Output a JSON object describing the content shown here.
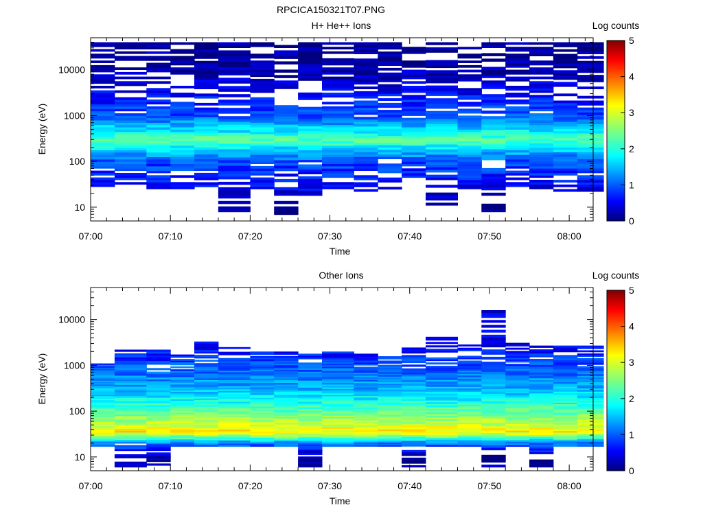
{
  "figure_title": "RPCICA150321T07.PNG",
  "colormap": [
    "#00007f",
    "#0000ff",
    "#007fff",
    "#00ffff",
    "#7fff7f",
    "#ffff00",
    "#ff7f00",
    "#ff0000",
    "#7f0000"
  ],
  "chart_data": [
    {
      "type": "heatmap",
      "title": "H+ He++ Ions",
      "xlabel": "Time",
      "ylabel": "Energy (eV)",
      "y_scale": "log",
      "ylim": [
        5,
        50000
      ],
      "x_ticks": [
        "07:00",
        "07:10",
        "07:20",
        "07:30",
        "07:40",
        "07:50",
        "08:00"
      ],
      "y_ticks": [
        "10",
        "100",
        "1000",
        "10000"
      ],
      "x_range": [
        "07:00",
        "08:03"
      ],
      "time_columns": [
        "07:00",
        "07:03",
        "07:07",
        "07:10",
        "07:13",
        "07:16",
        "07:20",
        "07:23",
        "07:26",
        "07:29",
        "07:33",
        "07:36",
        "07:39",
        "07:42",
        "07:46",
        "07:49",
        "07:52",
        "07:55",
        "07:58",
        "08:01"
      ],
      "colorbar": {
        "label": "Log counts",
        "range": [
          0,
          5
        ],
        "ticks": [
          "0",
          "1",
          "2",
          "3",
          "4",
          "5"
        ]
      },
      "profile": [
        {
          "energy": 10,
          "log_counts": 0.0
        },
        {
          "energy": 30,
          "log_counts": 0.6
        },
        {
          "energy": 100,
          "log_counts": 1.0
        },
        {
          "energy": 300,
          "log_counts": 2.3
        },
        {
          "energy": 1000,
          "log_counts": 1.0
        },
        {
          "energy": 10000,
          "log_counts": 0.2
        },
        {
          "energy": 40000,
          "log_counts": 0.1
        }
      ],
      "range_per_column": [
        [
          25,
          40000
        ],
        [
          25,
          40000
        ],
        [
          25,
          40000
        ],
        [
          25,
          40000
        ],
        [
          22,
          40000
        ],
        [
          6,
          40000
        ],
        [
          25,
          40000
        ],
        [
          6,
          40000
        ],
        [
          18,
          40000
        ],
        [
          25,
          40000
        ],
        [
          22,
          40000
        ],
        [
          22,
          40000
        ],
        [
          25,
          40000
        ],
        [
          11,
          40000
        ],
        [
          25,
          40000
        ],
        [
          6,
          40000
        ],
        [
          25,
          40000
        ],
        [
          25,
          40000
        ],
        [
          22,
          40000
        ],
        [
          22,
          40000
        ]
      ]
    },
    {
      "type": "heatmap",
      "title": "Other Ions",
      "xlabel": "Time",
      "ylabel": "Energy (eV)",
      "y_scale": "log",
      "ylim": [
        5,
        50000
      ],
      "x_ticks": [
        "07:00",
        "07:10",
        "07:20",
        "07:30",
        "07:40",
        "07:50",
        "08:00"
      ],
      "y_ticks": [
        "10",
        "100",
        "1000",
        "10000"
      ],
      "x_range": [
        "07:00",
        "08:03"
      ],
      "time_columns": [
        "07:00",
        "07:03",
        "07:07",
        "07:10",
        "07:13",
        "07:16",
        "07:20",
        "07:23",
        "07:26",
        "07:29",
        "07:33",
        "07:36",
        "07:39",
        "07:42",
        "07:46",
        "07:49",
        "07:52",
        "07:55",
        "07:58",
        "08:01"
      ],
      "colorbar": {
        "label": "Log counts",
        "range": [
          0,
          5
        ],
        "ticks": [
          "0",
          "1",
          "2",
          "3",
          "4",
          "5"
        ]
      },
      "profile": [
        {
          "energy": 10,
          "log_counts": 0.2
        },
        {
          "energy": 20,
          "log_counts": 1.2
        },
        {
          "energy": 35,
          "log_counts": 3.2
        },
        {
          "energy": 80,
          "log_counts": 2.5
        },
        {
          "energy": 300,
          "log_counts": 1.5
        },
        {
          "energy": 1000,
          "log_counts": 1.0
        },
        {
          "energy": 3000,
          "log_counts": 0.5
        }
      ],
      "range_per_column": [
        [
          17,
          1100
        ],
        [
          6,
          2200
        ],
        [
          6,
          2200
        ],
        [
          17,
          2000
        ],
        [
          17,
          3600
        ],
        [
          17,
          2500
        ],
        [
          17,
          2000
        ],
        [
          17,
          2000
        ],
        [
          6,
          1800
        ],
        [
          17,
          2000
        ],
        [
          17,
          1800
        ],
        [
          17,
          1700
        ],
        [
          6,
          2700
        ],
        [
          17,
          4200
        ],
        [
          17,
          3100
        ],
        [
          6,
          16000
        ],
        [
          17,
          3100
        ],
        [
          6,
          2700
        ],
        [
          17,
          2700
        ],
        [
          17,
          2700
        ]
      ]
    }
  ]
}
